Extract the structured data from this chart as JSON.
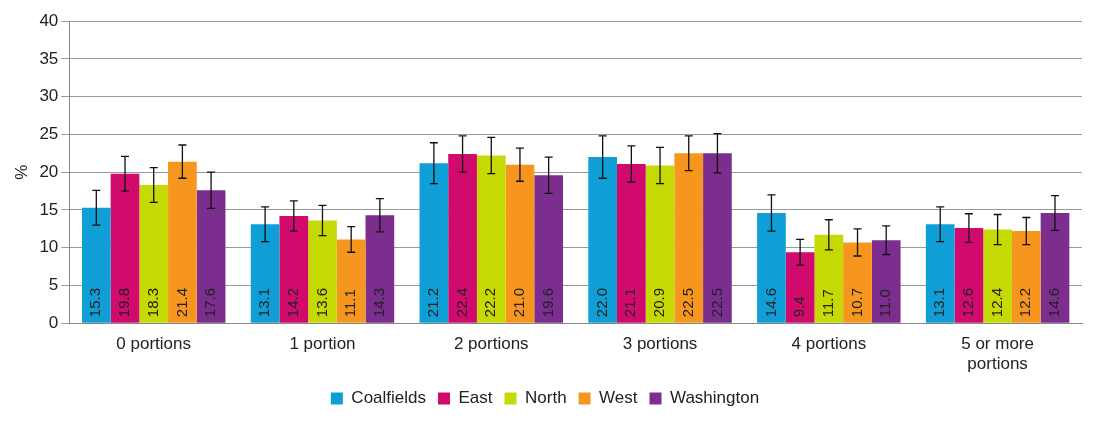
{
  "chart_data": {
    "type": "bar",
    "ylabel": "%",
    "categories": [
      "0 portions",
      "1 portion",
      "2 portions",
      "3 portions",
      "4 portions",
      "5 or more portions"
    ],
    "series": [
      {
        "name": "Coalfields",
        "color": "#0f9ed5",
        "values": [
          15.3,
          13.1,
          21.2,
          22.0,
          14.6,
          13.1
        ],
        "errors": [
          2.3,
          2.3,
          2.7,
          2.8,
          2.4,
          2.3
        ],
        "value_labels": [
          "15.3",
          "13.1",
          "21.2",
          "22.0",
          "14.6",
          "13.1"
        ]
      },
      {
        "name": "East",
        "color": "#d10a6e",
        "values": [
          19.8,
          14.2,
          22.4,
          21.1,
          9.4,
          12.6
        ],
        "errors": [
          2.3,
          2.0,
          2.4,
          2.4,
          1.7,
          1.9
        ],
        "value_labels": [
          "19.8",
          "14.2",
          "22.4",
          "21.1",
          "9.4",
          "12.6"
        ]
      },
      {
        "name": "North",
        "color": "#c5d905",
        "values": [
          18.3,
          13.6,
          22.2,
          20.9,
          11.7,
          12.4
        ],
        "errors": [
          2.3,
          2.0,
          2.4,
          2.4,
          2.0,
          2.0
        ],
        "value_labels": [
          "18.3",
          "13.6",
          "22.2",
          "20.9",
          "11.7",
          "12.4"
        ]
      },
      {
        "name": "West",
        "color": "#f7961e",
        "values": [
          21.4,
          11.1,
          21.0,
          22.5,
          10.7,
          12.2
        ],
        "errors": [
          2.2,
          1.7,
          2.2,
          2.3,
          1.8,
          1.8
        ],
        "value_labels": [
          "21.4",
          "11.1",
          "21.0",
          "22.5",
          "10.7",
          "12.2"
        ]
      },
      {
        "name": "Washington",
        "color": "#7b2e8e",
        "values": [
          17.6,
          14.3,
          19.6,
          22.5,
          11.0,
          14.6
        ],
        "errors": [
          2.4,
          2.2,
          2.4,
          2.6,
          1.9,
          2.3
        ],
        "value_labels": [
          "17.6",
          "14.3",
          "19.6",
          "22.5",
          "11.0",
          "14.6"
        ]
      }
    ],
    "ylim": [
      0,
      40
    ],
    "yticks": [
      0,
      5,
      10,
      15,
      20,
      25,
      30,
      35,
      40
    ],
    "grid": "y",
    "legend": "bottom"
  }
}
